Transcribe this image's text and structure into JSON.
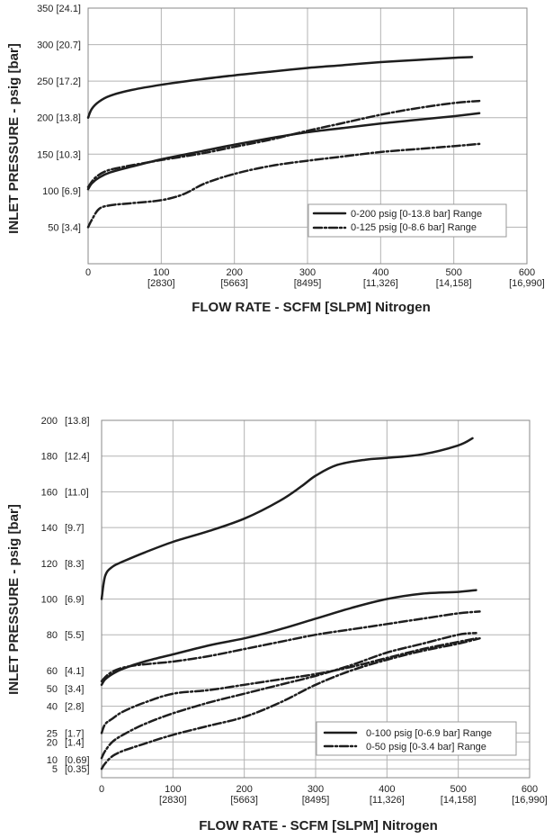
{
  "chart_data": [
    {
      "type": "line",
      "ylabel": "INLET PRESSURE - psig [bar]",
      "xlabel": "FLOW RATE - SCFM [SLPM] Nitrogen",
      "xlim": [
        0,
        600
      ],
      "ylim": [
        0,
        350
      ],
      "grid": true,
      "legend_position": "bottom-right",
      "x_ticks": [
        {
          "value": 0,
          "label": "0",
          "sub": ""
        },
        {
          "value": 100,
          "label": "100",
          "sub": "[2830]"
        },
        {
          "value": 200,
          "label": "200",
          "sub": "[5663]"
        },
        {
          "value": 300,
          "label": "300",
          "sub": "[8495]"
        },
        {
          "value": 400,
          "label": "400",
          "sub": "[11,326]"
        },
        {
          "value": 500,
          "label": "500",
          "sub": "[14,158]"
        },
        {
          "value": 600,
          "label": "600",
          "sub": "[16,990]"
        }
      ],
      "y_ticks": [
        {
          "value": 350,
          "label": "350 [24.1]"
        },
        {
          "value": 300,
          "label": "300 [20.7]"
        },
        {
          "value": 250,
          "label": "250 [17.2]"
        },
        {
          "value": 200,
          "label": "200 [13.8]"
        },
        {
          "value": 150,
          "label": "150 [10.3]"
        },
        {
          "value": 100,
          "label": "100 [6.9]"
        },
        {
          "value": 50,
          "label": "50 [3.4]"
        }
      ],
      "legend": [
        {
          "label": "0-200 psig [0-13.8 bar] Range",
          "style": "solid"
        },
        {
          "label": "0-125 psig [0-8.6 bar] Range",
          "style": "dashdot"
        }
      ],
      "series": [
        {
          "name": "0-200 psig [0-13.8 bar] Range",
          "style": "solid",
          "points": [
            [
              0,
              200
            ],
            [
              5,
              212
            ],
            [
              15,
              222
            ],
            [
              30,
              230
            ],
            [
              60,
              238
            ],
            [
              100,
              245
            ],
            [
              150,
              252
            ],
            [
              200,
              258
            ],
            [
              250,
              263
            ],
            [
              300,
              268
            ],
            [
              350,
              272
            ],
            [
              400,
              276
            ],
            [
              450,
              279
            ],
            [
              500,
              282
            ],
            [
              525,
              283
            ]
          ]
        },
        {
          "name": "0-200 psig [0-13.8 bar] Range",
          "style": "solid",
          "points": [
            [
              0,
              102
            ],
            [
              5,
              110
            ],
            [
              15,
              118
            ],
            [
              30,
              125
            ],
            [
              60,
              133
            ],
            [
              100,
              143
            ],
            [
              150,
              153
            ],
            [
              200,
              163
            ],
            [
              250,
              172
            ],
            [
              300,
              180
            ],
            [
              350,
              186
            ],
            [
              400,
              192
            ],
            [
              450,
              197
            ],
            [
              500,
              202
            ],
            [
              535,
              206
            ]
          ]
        },
        {
          "name": "0-125 psig [0-8.6 bar] Range",
          "style": "dashdot",
          "points": [
            [
              0,
              105
            ],
            [
              10,
              118
            ],
            [
              25,
              127
            ],
            [
              50,
              133
            ],
            [
              100,
              142
            ],
            [
              150,
              150
            ],
            [
              200,
              160
            ],
            [
              250,
              170
            ],
            [
              300,
              182
            ],
            [
              350,
              193
            ],
            [
              400,
              204
            ],
            [
              450,
              213
            ],
            [
              500,
              220
            ],
            [
              535,
              223
            ]
          ]
        },
        {
          "name": "0-125 psig [0-8.6 bar] Range",
          "style": "dashdot",
          "points": [
            [
              0,
              50
            ],
            [
              5,
              60
            ],
            [
              15,
              75
            ],
            [
              30,
              80
            ],
            [
              60,
              83
            ],
            [
              100,
              87
            ],
            [
              130,
              95
            ],
            [
              160,
              110
            ],
            [
              200,
              123
            ],
            [
              250,
              134
            ],
            [
              300,
              141
            ],
            [
              350,
              147
            ],
            [
              400,
              153
            ],
            [
              450,
              157
            ],
            [
              500,
              161
            ],
            [
              535,
              164
            ]
          ]
        }
      ]
    },
    {
      "type": "line",
      "ylabel": "INLET PRESSURE - psig [bar]",
      "xlabel": "FLOW RATE - SCFM [SLPM] Nitrogen",
      "xlim": [
        0,
        600
      ],
      "ylim": [
        0,
        200
      ],
      "grid": true,
      "legend_position": "bottom-right",
      "x_ticks": [
        {
          "value": 0,
          "label": "0",
          "sub": ""
        },
        {
          "value": 100,
          "label": "100",
          "sub": "[2830]"
        },
        {
          "value": 200,
          "label": "200",
          "sub": "[5663]"
        },
        {
          "value": 300,
          "label": "300",
          "sub": "[8495]"
        },
        {
          "value": 400,
          "label": "400",
          "sub": "[11,326]"
        },
        {
          "value": 500,
          "label": "500",
          "sub": "[14,158]"
        },
        {
          "value": 600,
          "label": "600",
          "sub": "[16,990]"
        }
      ],
      "y_ticks": [
        {
          "value": 200,
          "label": "200",
          "sub": "[13.8]"
        },
        {
          "value": 180,
          "label": "180",
          "sub": "[12.4]"
        },
        {
          "value": 160,
          "label": "160",
          "sub": "[11.0]"
        },
        {
          "value": 140,
          "label": "140",
          "sub": "[9.7]"
        },
        {
          "value": 120,
          "label": "120",
          "sub": "[8.3]"
        },
        {
          "value": 100,
          "label": "100",
          "sub": "[6.9]"
        },
        {
          "value": 80,
          "label": "80",
          "sub": "[5.5]"
        },
        {
          "value": 60,
          "label": "60",
          "sub": "[4.1]"
        },
        {
          "value": 50,
          "label": "50",
          "sub": "[3.4]"
        },
        {
          "value": 40,
          "label": "40",
          "sub": "[2.8]"
        },
        {
          "value": 25,
          "label": "25",
          "sub": "[1.7]"
        },
        {
          "value": 20,
          "label": "20",
          "sub": "[1.4]"
        },
        {
          "value": 10,
          "label": "10",
          "sub": "[0.69]"
        },
        {
          "value": 5,
          "label": "5",
          "sub": "[0.35]"
        }
      ],
      "legend": [
        {
          "label": "0-100 psig [0-6.9 bar] Range",
          "style": "solid"
        },
        {
          "label": "0-50 psig [0-3.4 bar] Range",
          "style": "dashdot"
        }
      ],
      "series": [
        {
          "name": "0-100 psig [0-6.9 bar] Range",
          "style": "solid",
          "points": [
            [
              0,
              100
            ],
            [
              5,
              113
            ],
            [
              15,
              118
            ],
            [
              30,
              121
            ],
            [
              60,
              126
            ],
            [
              100,
              132
            ],
            [
              150,
              138
            ],
            [
              200,
              145
            ],
            [
              250,
              155
            ],
            [
              280,
              163
            ],
            [
              300,
              169
            ],
            [
              330,
              175
            ],
            [
              370,
              178
            ],
            [
              400,
              179
            ],
            [
              450,
              181
            ],
            [
              500,
              186
            ],
            [
              520,
              190
            ]
          ]
        },
        {
          "name": "0-100 psig [0-6.9 bar] Range",
          "style": "solid",
          "points": [
            [
              0,
              52
            ],
            [
              5,
              55
            ],
            [
              15,
              58
            ],
            [
              30,
              61
            ],
            [
              60,
              65
            ],
            [
              100,
              69
            ],
            [
              150,
              74
            ],
            [
              200,
              78
            ],
            [
              250,
              83
            ],
            [
              300,
              89
            ],
            [
              350,
              95
            ],
            [
              400,
              100
            ],
            [
              450,
              103
            ],
            [
              500,
              104
            ],
            [
              525,
              105
            ]
          ]
        },
        {
          "name": "0-50 psig [0-3.4 bar] Range",
          "style": "dashdot",
          "points": [
            [
              0,
              54
            ],
            [
              10,
              58
            ],
            [
              25,
              61
            ],
            [
              50,
              63
            ],
            [
              100,
              65
            ],
            [
              150,
              68
            ],
            [
              200,
              72
            ],
            [
              250,
              76
            ],
            [
              300,
              80
            ],
            [
              350,
              83
            ],
            [
              400,
              86
            ],
            [
              450,
              89
            ],
            [
              500,
              92
            ],
            [
              530,
              93
            ]
          ]
        },
        {
          "name": "0-50 psig [0-3.4 bar] Range",
          "style": "dashdot",
          "points": [
            [
              0,
              11
            ],
            [
              5,
              15
            ],
            [
              15,
              20
            ],
            [
              30,
              24
            ],
            [
              60,
              30
            ],
            [
              100,
              36
            ],
            [
              150,
              42
            ],
            [
              200,
              47
            ],
            [
              250,
              52
            ],
            [
              300,
              57
            ],
            [
              350,
              63
            ],
            [
              400,
              70
            ],
            [
              450,
              75
            ],
            [
              500,
              80
            ],
            [
              525,
              81
            ]
          ]
        },
        {
          "name": "0-50 psig [0-3.4 bar] Range",
          "style": "dashdot",
          "points": [
            [
              0,
              25
            ],
            [
              5,
              30
            ],
            [
              15,
              33
            ],
            [
              30,
              37
            ],
            [
              60,
              42
            ],
            [
              100,
              47
            ],
            [
              150,
              49
            ],
            [
              200,
              52
            ],
            [
              250,
              55
            ],
            [
              300,
              58
            ],
            [
              350,
              62
            ],
            [
              400,
              67
            ],
            [
              450,
              72
            ],
            [
              500,
              76
            ],
            [
              525,
              78
            ]
          ]
        },
        {
          "name": "0-50 psig [0-3.4 bar] Range",
          "style": "dashdot",
          "points": [
            [
              0,
              5
            ],
            [
              5,
              8
            ],
            [
              15,
              12
            ],
            [
              30,
              15
            ],
            [
              60,
              19
            ],
            [
              100,
              24
            ],
            [
              150,
              29
            ],
            [
              200,
              34
            ],
            [
              250,
              42
            ],
            [
              300,
              52
            ],
            [
              350,
              60
            ],
            [
              400,
              66
            ],
            [
              450,
              71
            ],
            [
              500,
              75
            ],
            [
              530,
              78
            ]
          ]
        }
      ]
    }
  ]
}
